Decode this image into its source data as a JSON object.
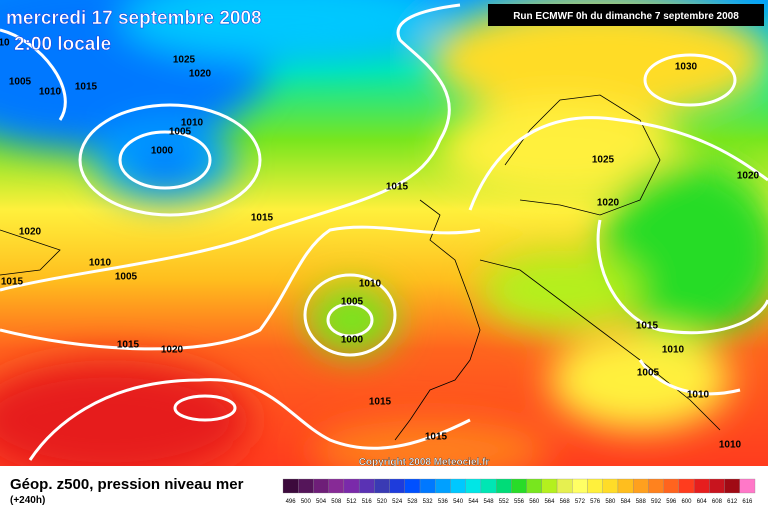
{
  "header": {
    "title": "mercredi 17 septembre 2008",
    "subtitle": "2:00 locale",
    "run": "Run ECMWF 0h du dimanche 7 septembre 2008"
  },
  "isobar_labels": [
    "10",
    "1005",
    "1010",
    "1015",
    "1025",
    "1020",
    "1010",
    "1005",
    "1000",
    "1015",
    "1015",
    "1020",
    "1010",
    "1005",
    "1015",
    "1010",
    "1005",
    "1000",
    "1015",
    "1020",
    "1015",
    "1015",
    "1030",
    "1025",
    "1020",
    "1020",
    "1015",
    "1010",
    "1005",
    "1010",
    "1010"
  ],
  "copyright": "Copyright 2008 Meteociel.fr",
  "footer": {
    "title": "Géop. z500, pression niveau mer",
    "subtitle": "(+240h)"
  },
  "scale": {
    "labels": [
      "496",
      "500",
      "504",
      "508",
      "512",
      "516",
      "520",
      "524",
      "528",
      "532",
      "536",
      "540",
      "544",
      "548",
      "552",
      "556",
      "560",
      "564",
      "568",
      "572",
      "576",
      "580",
      "584",
      "588",
      "592",
      "596",
      "600",
      "604",
      "608",
      "612",
      "616"
    ],
    "colors": [
      "#3c0a3c",
      "#55155a",
      "#6e1e78",
      "#872a96",
      "#7a2aaa",
      "#5a32b4",
      "#3a3ab4",
      "#1e3cdc",
      "#0050ff",
      "#0078ff",
      "#00a0ff",
      "#00c8ff",
      "#00e6e6",
      "#00e6b4",
      "#00dc78",
      "#28dc28",
      "#78e61e",
      "#b4f01e",
      "#e6f050",
      "#ffff64",
      "#fff03c",
      "#ffdc28",
      "#ffbe1e",
      "#ffa01e",
      "#ff821e",
      "#ff641e",
      "#ff3c1e",
      "#e61e1e",
      "#c8141e",
      "#a00a14",
      "#ff78c8"
    ]
  }
}
